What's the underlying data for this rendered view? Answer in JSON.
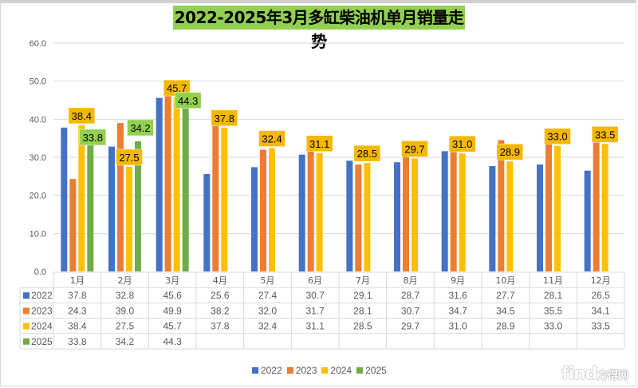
{
  "chart_data": {
    "type": "bar",
    "title": "2022-2025年3月多缸柴油机单月销量走势",
    "xlabel": "",
    "ylabel": "",
    "ylim": [
      0,
      60
    ],
    "yticks": [
      "0.0",
      "10.0",
      "20.0",
      "30.0",
      "40.0",
      "50.0",
      "60.0"
    ],
    "ytick_values": [
      0,
      10,
      20,
      30,
      40,
      50,
      60
    ],
    "grid": true,
    "legend_position": "bottom",
    "categories": [
      "1月",
      "2月",
      "3月",
      "4月",
      "5月",
      "6月",
      "7月",
      "8月",
      "9月",
      "10月",
      "11月",
      "12月"
    ],
    "series": [
      {
        "name": "2022",
        "color": "#4472c4",
        "values": [
          37.8,
          32.8,
          45.6,
          25.6,
          27.4,
          30.7,
          29.1,
          28.7,
          31.6,
          27.7,
          28.1,
          26.5
        ]
      },
      {
        "name": "2023",
        "color": "#ed7d31",
        "values": [
          24.3,
          39.0,
          49.9,
          38.2,
          32.0,
          31.7,
          28.1,
          30.7,
          34.7,
          34.5,
          35.5,
          34.1
        ]
      },
      {
        "name": "2024",
        "color": "#ffc000",
        "values": [
          38.4,
          27.5,
          45.7,
          37.8,
          32.4,
          31.1,
          28.5,
          29.7,
          31.0,
          28.9,
          33.0,
          33.5
        ]
      },
      {
        "name": "2025",
        "color": "#70ad47",
        "values": [
          33.8,
          34.2,
          44.3,
          null,
          null,
          null,
          null,
          null,
          null,
          null,
          null,
          null
        ]
      }
    ],
    "data_labels": {
      "2024": [
        "38.4",
        "27.5",
        "45.7",
        "37.8",
        "32.4",
        "31.1",
        "28.5",
        "29.7",
        "31.0",
        "28.9",
        "33.0",
        "33.5"
      ],
      "2025": [
        "33.8",
        "34.2",
        "44.3"
      ]
    },
    "data_table": true
  },
  "colors": {
    "title_bg": "#92d050",
    "label_2024_bg": "#f5b800",
    "label_2025_bg": "#92d050",
    "grid": "#d9d9d9",
    "axis_text": "#595959"
  },
  "watermark": {
    "brand": "find",
    "cn": "方得网"
  }
}
